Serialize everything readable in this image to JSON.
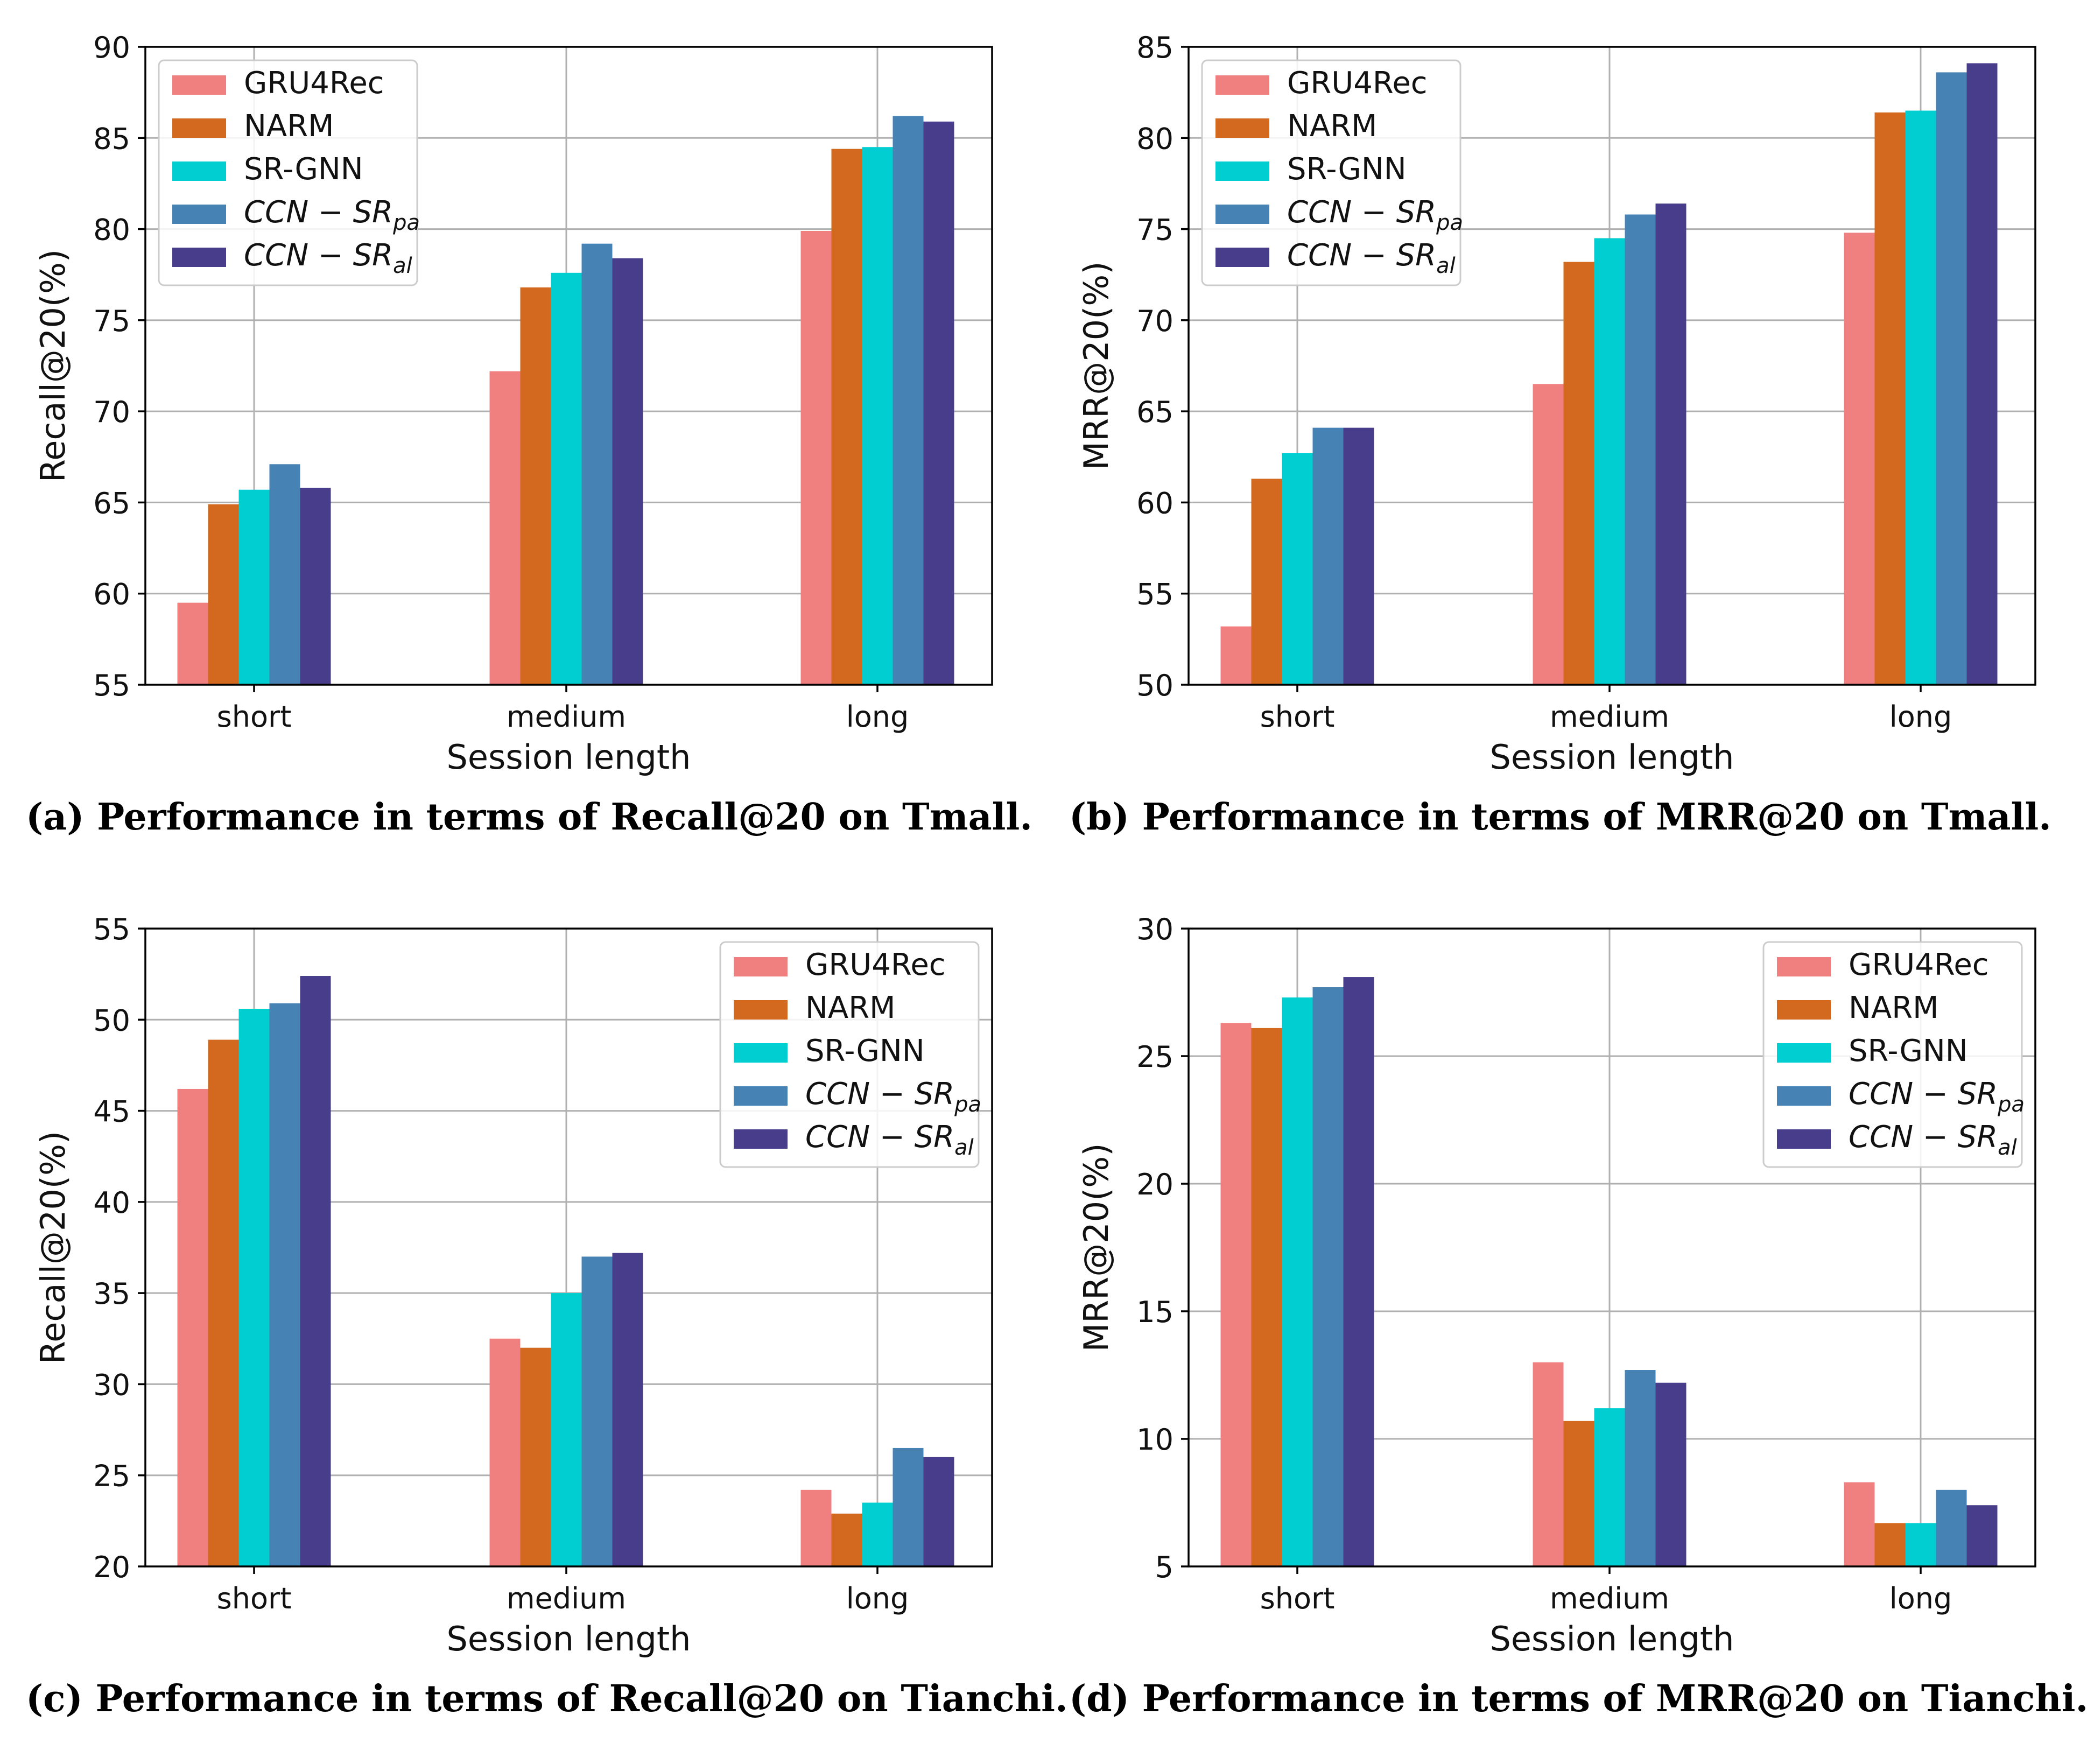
{
  "series_colors": [
    "#f08080",
    "#d2691e",
    "#00ced1",
    "#4682b4",
    "#483d8b"
  ],
  "chart_data": [
    {
      "type": "bar",
      "caption": "(a) Performance in terms of Recall@20 on Tmall.",
      "xlabel": "Session length",
      "ylabel": "Recall@20(%)",
      "categories": [
        "short",
        "medium",
        "long"
      ],
      "ylim": [
        55,
        90
      ],
      "yticks": [
        55,
        60,
        65,
        70,
        75,
        80,
        85,
        90
      ],
      "legend_position": "upper-left",
      "series": [
        {
          "name": "GRU4Rec",
          "base": "GRU4Rec",
          "sub": "",
          "values": [
            59.5,
            72.2,
            79.9
          ]
        },
        {
          "name": "NARM",
          "base": "NARM",
          "sub": "",
          "values": [
            64.9,
            76.8,
            84.4
          ]
        },
        {
          "name": "SR-GNN",
          "base": "SR-GNN",
          "sub": "",
          "values": [
            65.7,
            77.6,
            84.5
          ]
        },
        {
          "name": "CCN-SR_pa",
          "base": "CCN − SR",
          "sub": "pa",
          "values": [
            67.1,
            79.2,
            86.2
          ]
        },
        {
          "name": "CCN-SR_al",
          "base": "CCN − SR",
          "sub": "al",
          "values": [
            65.8,
            78.4,
            85.9
          ]
        }
      ]
    },
    {
      "type": "bar",
      "caption": "(b) Performance in terms of MRR@20 on Tmall.",
      "xlabel": "Session length",
      "ylabel": "MRR@20(%)",
      "categories": [
        "short",
        "medium",
        "long"
      ],
      "ylim": [
        50,
        85
      ],
      "yticks": [
        50,
        55,
        60,
        65,
        70,
        75,
        80,
        85
      ],
      "legend_position": "upper-left",
      "series": [
        {
          "name": "GRU4Rec",
          "base": "GRU4Rec",
          "sub": "",
          "values": [
            53.2,
            66.5,
            74.8
          ]
        },
        {
          "name": "NARM",
          "base": "NARM",
          "sub": "",
          "values": [
            61.3,
            73.2,
            81.4
          ]
        },
        {
          "name": "SR-GNN",
          "base": "SR-GNN",
          "sub": "",
          "values": [
            62.7,
            74.5,
            81.5
          ]
        },
        {
          "name": "CCN-SR_pa",
          "base": "CCN − SR",
          "sub": "pa",
          "values": [
            64.1,
            75.8,
            83.6
          ]
        },
        {
          "name": "CCN-SR_al",
          "base": "CCN − SR",
          "sub": "al",
          "values": [
            64.1,
            76.4,
            84.1
          ]
        }
      ]
    },
    {
      "type": "bar",
      "caption": "(c) Performance in terms of Recall@20 on Tianchi.",
      "xlabel": "Session length",
      "ylabel": "Recall@20(%)",
      "categories": [
        "short",
        "medium",
        "long"
      ],
      "ylim": [
        20,
        55
      ],
      "yticks": [
        20,
        25,
        30,
        35,
        40,
        45,
        50,
        55
      ],
      "legend_position": "upper-right",
      "series": [
        {
          "name": "GRU4Rec",
          "base": "GRU4Rec",
          "sub": "",
          "values": [
            46.2,
            32.5,
            24.2
          ]
        },
        {
          "name": "NARM",
          "base": "NARM",
          "sub": "",
          "values": [
            48.9,
            32.0,
            22.9
          ]
        },
        {
          "name": "SR-GNN",
          "base": "SR-GNN",
          "sub": "",
          "values": [
            50.6,
            35.0,
            23.5
          ]
        },
        {
          "name": "CCN-SR_pa",
          "base": "CCN − SR",
          "sub": "pa",
          "values": [
            50.9,
            37.0,
            26.5
          ]
        },
        {
          "name": "CCN-SR_al",
          "base": "CCN − SR",
          "sub": "al",
          "values": [
            52.4,
            37.2,
            26.0
          ]
        }
      ]
    },
    {
      "type": "bar",
      "caption": "(d) Performance in terms of MRR@20 on Tianchi.",
      "xlabel": "Session length",
      "ylabel": "MRR@20(%)",
      "categories": [
        "short",
        "medium",
        "long"
      ],
      "ylim": [
        5,
        30
      ],
      "yticks": [
        5,
        10,
        15,
        20,
        25,
        30
      ],
      "legend_position": "upper-right",
      "series": [
        {
          "name": "GRU4Rec",
          "base": "GRU4Rec",
          "sub": "",
          "values": [
            26.3,
            13.0,
            8.3
          ]
        },
        {
          "name": "NARM",
          "base": "NARM",
          "sub": "",
          "values": [
            26.1,
            10.7,
            6.7
          ]
        },
        {
          "name": "SR-GNN",
          "base": "SR-GNN",
          "sub": "",
          "values": [
            27.3,
            11.2,
            6.7
          ]
        },
        {
          "name": "CCN-SR_pa",
          "base": "CCN − SR",
          "sub": "pa",
          "values": [
            27.7,
            12.7,
            8.0
          ]
        },
        {
          "name": "CCN-SR_al",
          "base": "CCN − SR",
          "sub": "al",
          "values": [
            28.1,
            12.2,
            7.4
          ]
        }
      ]
    }
  ]
}
